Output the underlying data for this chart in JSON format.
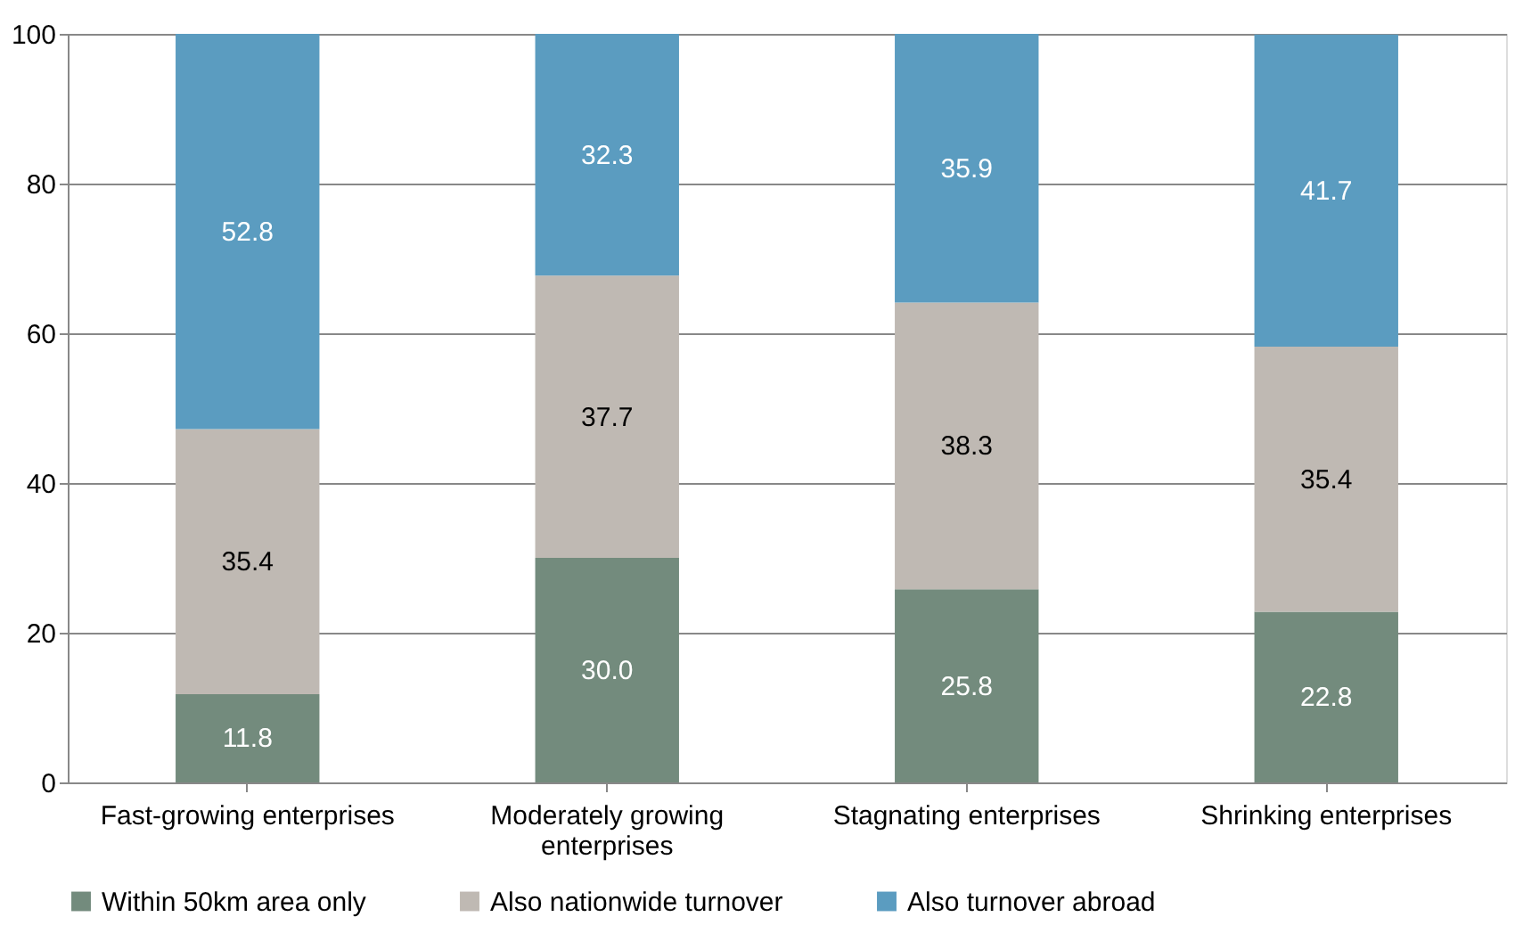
{
  "chart_data": {
    "type": "bar",
    "stacked": true,
    "categories": [
      "Fast-growing enterprises",
      "Moderately growing enterprises",
      "Stagnating enterprises",
      "Shrinking enterprises"
    ],
    "series": [
      {
        "name": "Within 50km area only",
        "color": "#738b7d",
        "values": [
          11.8,
          30.0,
          25.8,
          22.8
        ],
        "value_labels": [
          "11.8",
          "30.0",
          "25.8",
          "22.8"
        ]
      },
      {
        "name": "Also nationwide turnover",
        "color": "#bfb9b3",
        "values": [
          35.4,
          37.7,
          38.3,
          35.4
        ],
        "value_labels": [
          "35.4",
          "37.7",
          "38.3",
          "35.4"
        ]
      },
      {
        "name": "Also turnover abroad",
        "color": "#5b9cc0",
        "values": [
          52.8,
          32.3,
          35.9,
          41.7
        ],
        "value_labels": [
          "52.8",
          "32.3",
          "35.9",
          "41.7"
        ]
      }
    ],
    "ylim": [
      0,
      100
    ],
    "yticks": [
      0,
      20,
      40,
      60,
      80,
      100
    ],
    "grid": "y",
    "legend": "bottom"
  }
}
